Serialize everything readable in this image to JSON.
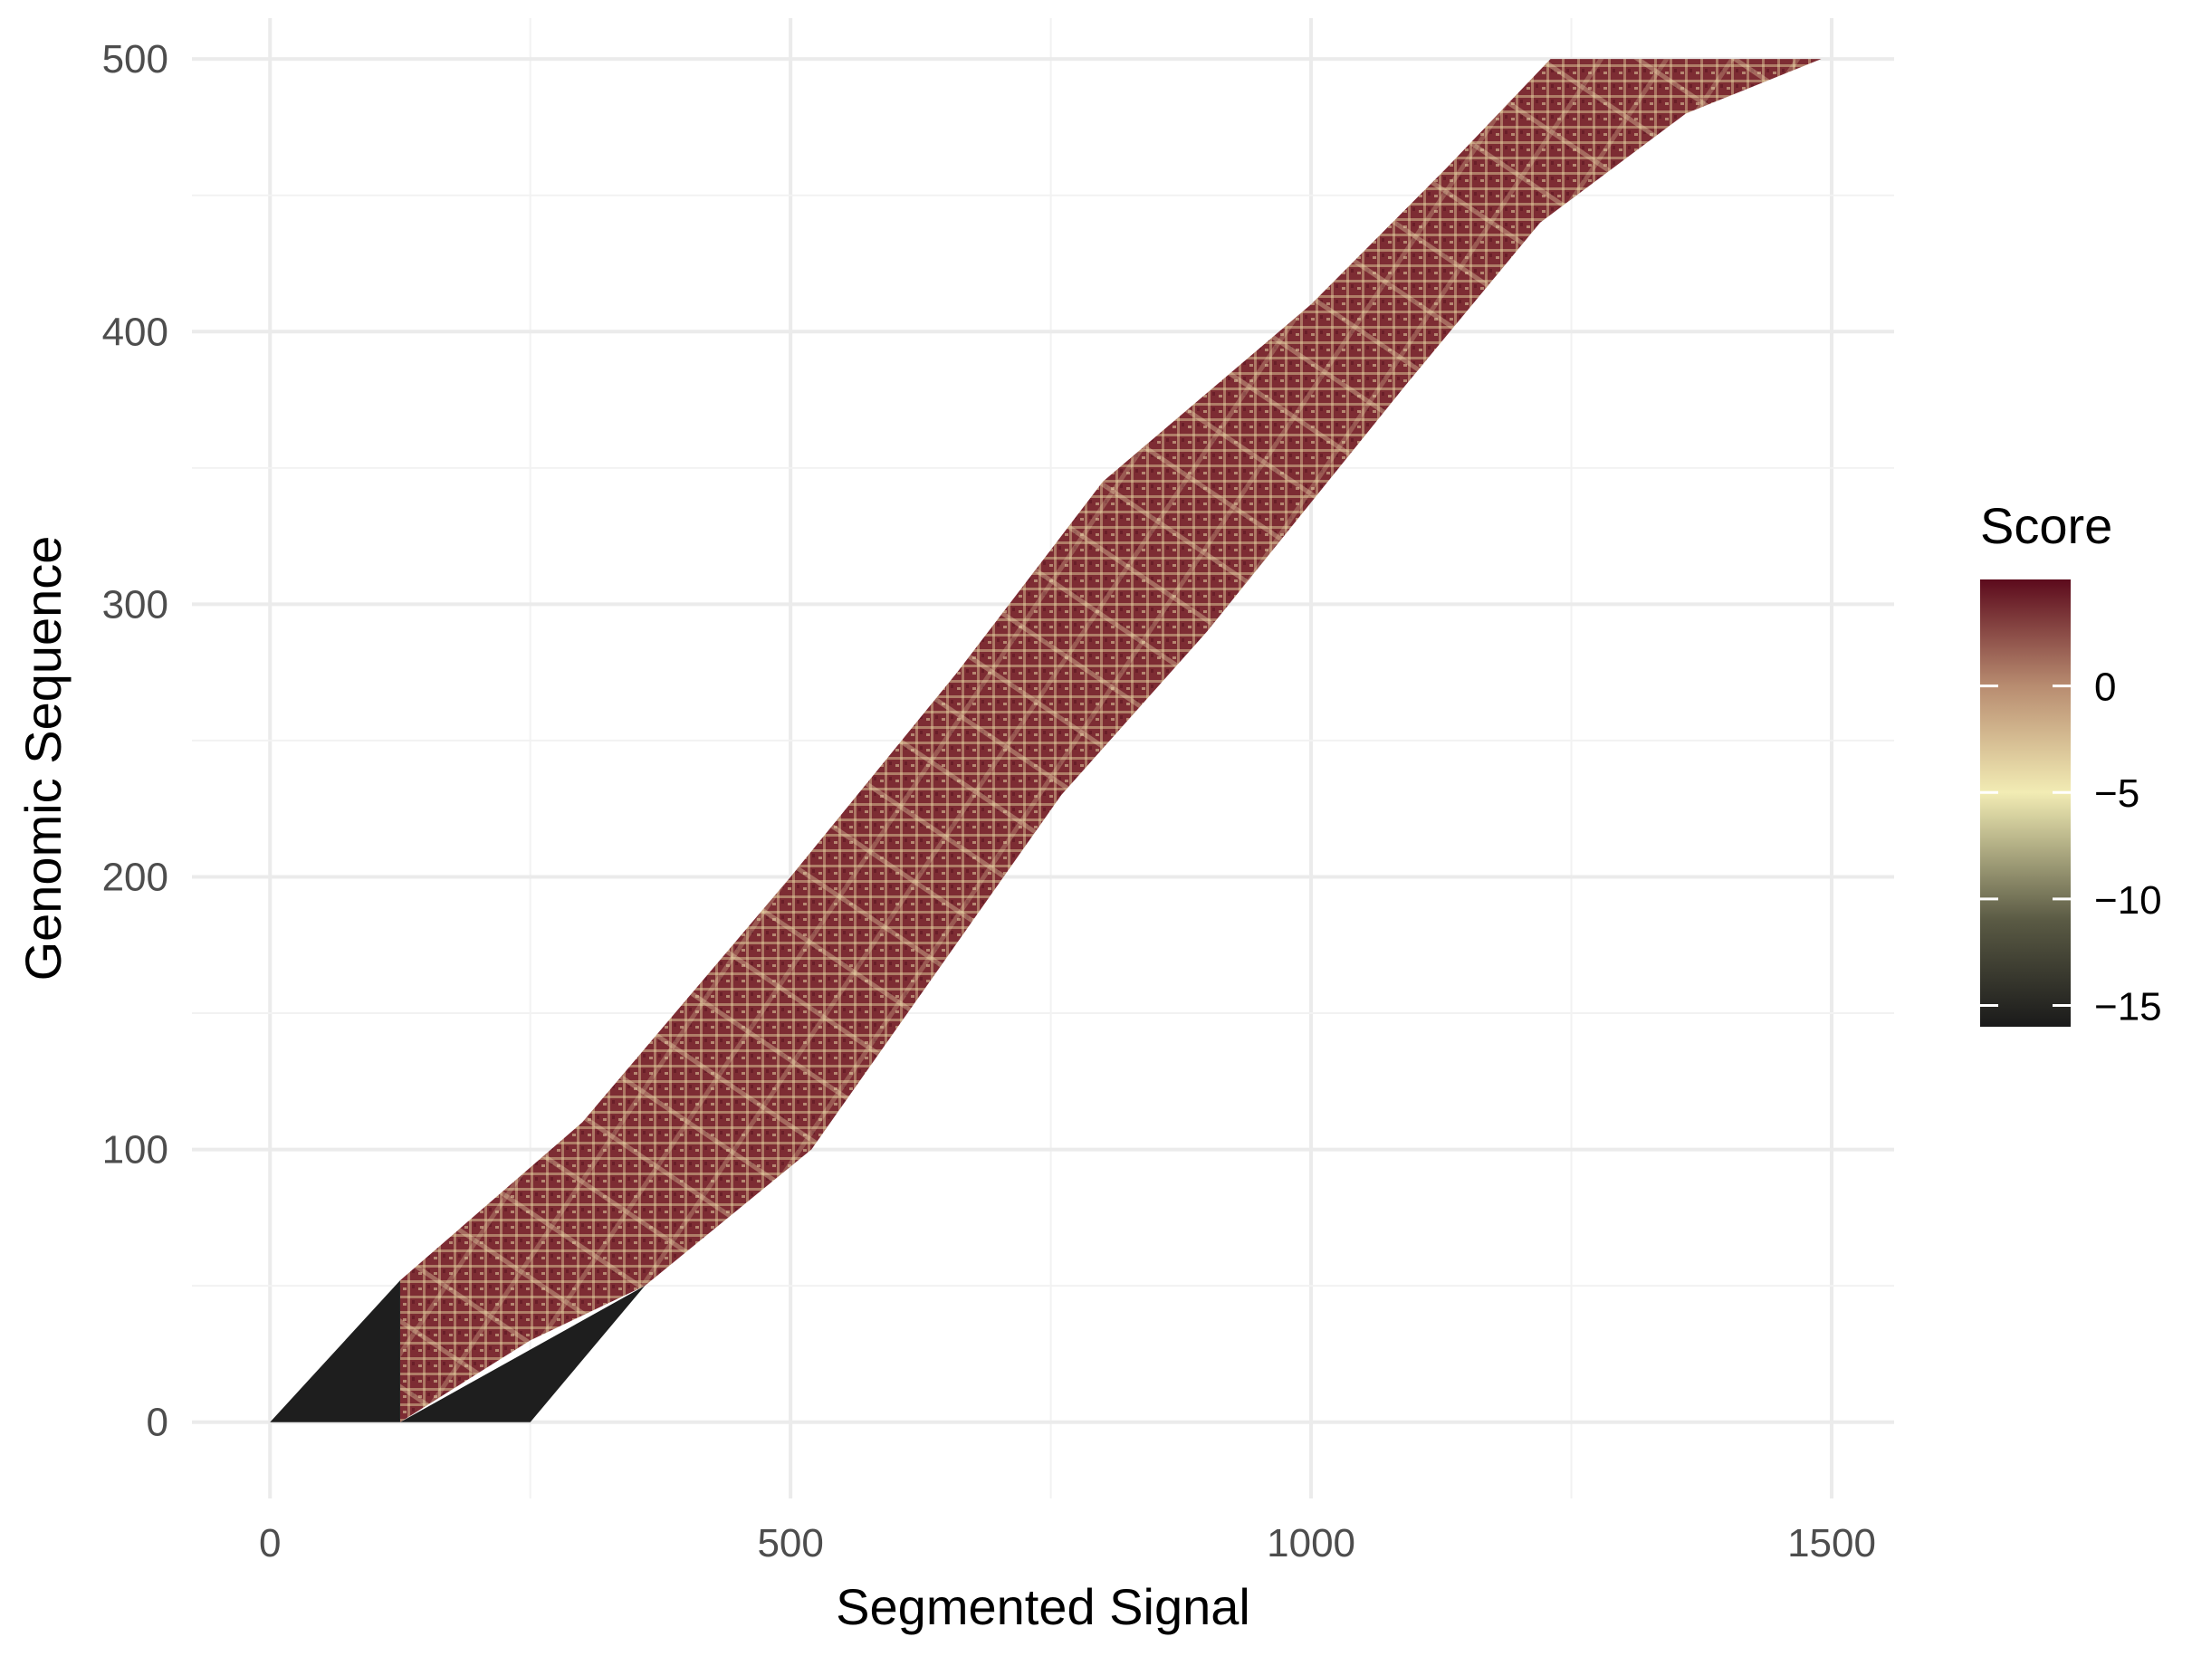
{
  "chart_data": {
    "type": "heatmap",
    "title": "",
    "xlabel": "Segmented Signal",
    "ylabel": "Genomic Sequence",
    "xlim": [
      -75,
      1560
    ],
    "ylim": [
      -28,
      515
    ],
    "x_ticks": [
      0,
      500,
      1000,
      1500
    ],
    "x_tick_labels": [
      "0",
      "500",
      "1000",
      "1500"
    ],
    "y_ticks": [
      0,
      100,
      200,
      300,
      400,
      500
    ],
    "y_tick_labels": [
      "0",
      "100",
      "200",
      "300",
      "400",
      "500"
    ],
    "grid": true,
    "legend": {
      "title": "Score",
      "placement": "right",
      "min": -16,
      "max": 5,
      "ticks": [
        0,
        -5,
        -10,
        -15
      ],
      "tick_labels": [
        "0",
        "−5",
        "−10",
        "−15"
      ],
      "colors": [
        "#1a1a1a",
        "#5a5a44",
        "#f2ecb4",
        "#b88c70",
        "#5c0a1c"
      ],
      "color_stops": [
        -16,
        -11,
        -5,
        0,
        5
      ]
    },
    "band": {
      "description_values": "upper and lower (x, genomic position) boundaries of the scored region",
      "upper_edge": [
        [
          125,
          52
        ],
        [
          300,
          110
        ],
        [
          500,
          200
        ],
        [
          660,
          275
        ],
        [
          800,
          345
        ],
        [
          1000,
          410
        ],
        [
          1130,
          460
        ],
        [
          1230,
          500
        ],
        [
          1490,
          500
        ]
      ],
      "lower_edge": [
        [
          125,
          0
        ],
        [
          250,
          30
        ],
        [
          360,
          50
        ],
        [
          520,
          100
        ],
        [
          760,
          230
        ],
        [
          900,
          290
        ],
        [
          1090,
          380
        ],
        [
          1220,
          440
        ],
        [
          1360,
          480
        ],
        [
          1490,
          500
        ]
      ],
      "dominant_color": "#7e2d33",
      "light_color": "#e8d6a0"
    },
    "masked_regions": [
      {
        "color": "#1e1e1e",
        "points": [
          [
            0,
            0
          ],
          [
            125,
            52
          ],
          [
            125,
            0
          ]
        ]
      },
      {
        "color": "#1e1e1e",
        "points": [
          [
            125,
            0
          ],
          [
            360,
            50
          ],
          [
            250,
            0
          ]
        ]
      }
    ]
  }
}
